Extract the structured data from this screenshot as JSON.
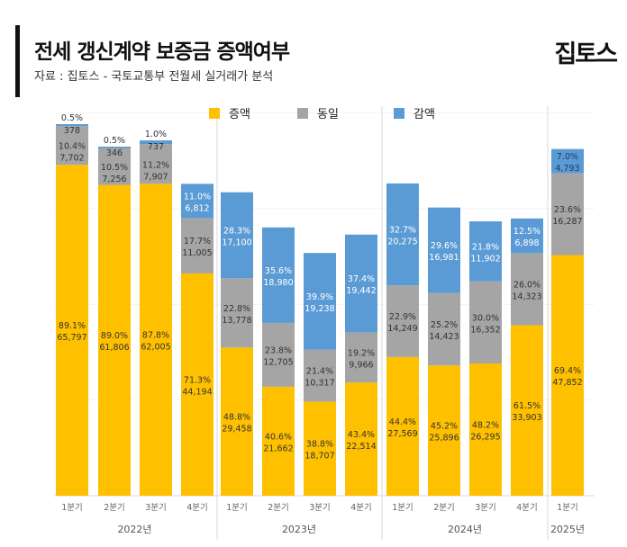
{
  "header": {
    "title": "전세 갱신계약 보증금 증액여부",
    "subtitle": "자료 : 집토스 - 국토교통부 전월세 실거래가 분석",
    "logo": "집토스"
  },
  "chart_data": {
    "type": "bar",
    "stacked": true,
    "title": "전세 갱신계약 보증금 증액여부",
    "legend_position": "top",
    "categories": [
      "1분기",
      "2분기",
      "3분기",
      "4분기",
      "1분기",
      "2분기",
      "3분기",
      "4분기",
      "1분기",
      "2분기",
      "3분기",
      "4분기",
      "1분기"
    ],
    "years": [
      {
        "label": "2022년",
        "count": 4
      },
      {
        "label": "2023년",
        "count": 4
      },
      {
        "label": "2024년",
        "count": 4
      },
      {
        "label": "2025년",
        "count": 1
      }
    ],
    "series": [
      {
        "name": "증액",
        "color": "#FFC000",
        "values": [
          65797,
          61806,
          62005,
          44194,
          29458,
          21662,
          18707,
          22514,
          27569,
          25896,
          26295,
          33903,
          47852
        ],
        "pct": [
          "89.1%",
          "89.0%",
          "87.8%",
          "71.3%",
          "48.8%",
          "40.6%",
          "38.8%",
          "43.4%",
          "44.4%",
          "45.2%",
          "48.2%",
          "61.5%",
          "69.4%"
        ]
      },
      {
        "name": "동일",
        "color": "#A5A5A5",
        "values": [
          7702,
          7256,
          7907,
          11005,
          13778,
          12705,
          10317,
          9966,
          14249,
          14423,
          16352,
          14323,
          16287
        ],
        "pct": [
          "10.4%",
          "10.5%",
          "11.2%",
          "17.7%",
          "22.8%",
          "23.8%",
          "21.4%",
          "19.2%",
          "22.9%",
          "25.2%",
          "30.0%",
          "26.0%",
          "23.6%"
        ]
      },
      {
        "name": "감액",
        "color": "#5B9BD5",
        "values": [
          378,
          346,
          737,
          6812,
          17100,
          18980,
          19238,
          19442,
          20275,
          16981,
          11902,
          6898,
          4793
        ],
        "pct": [
          "0.5%",
          "0.5%",
          "1.0%",
          "11.0%",
          "28.3%",
          "35.6%",
          "39.9%",
          "37.4%",
          "32.7%",
          "29.6%",
          "21.8%",
          "12.5%",
          "7.0%"
        ]
      }
    ]
  }
}
